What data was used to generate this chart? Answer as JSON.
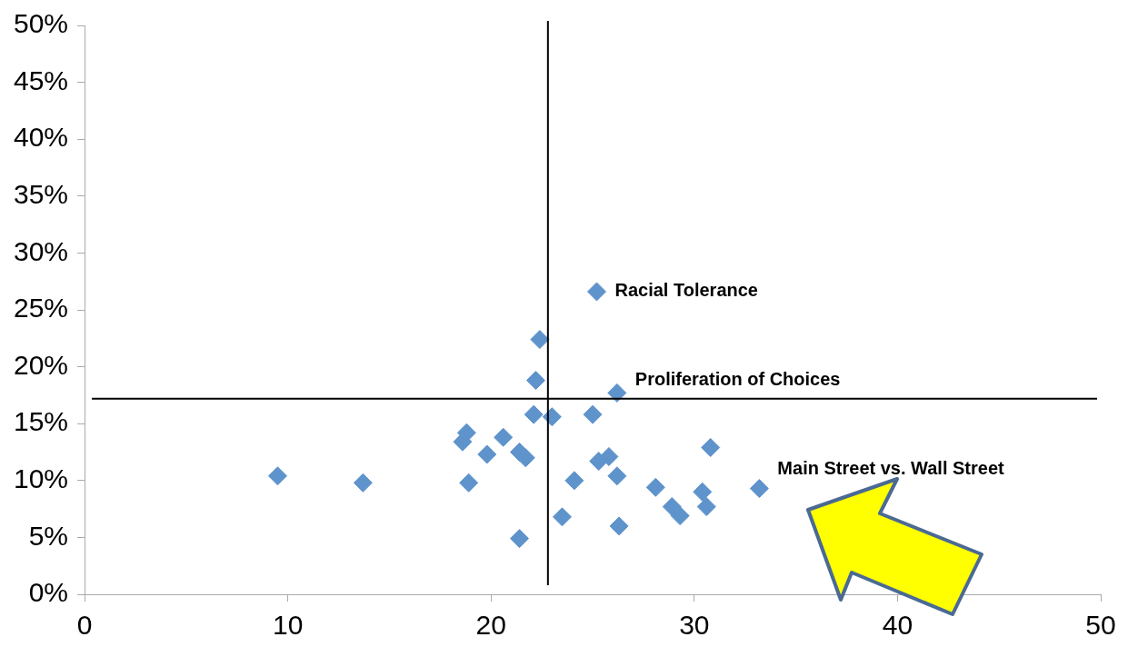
{
  "chart_data": {
    "type": "scatter",
    "marker": "diamond",
    "grid": false,
    "legend": false,
    "xlim": [
      0,
      50
    ],
    "xticks": [
      0,
      10,
      20,
      30,
      40,
      50
    ],
    "ylim": [
      0,
      50
    ],
    "yticks": [
      {
        "value": 0,
        "label": "0%"
      },
      {
        "value": 5,
        "label": "5%"
      },
      {
        "value": 10,
        "label": "10%"
      },
      {
        "value": 15,
        "label": "15%"
      },
      {
        "value": 20,
        "label": "20%"
      },
      {
        "value": 25,
        "label": "25%"
      },
      {
        "value": 30,
        "label": "30%"
      },
      {
        "value": 35,
        "label": "35%"
      },
      {
        "value": 40,
        "label": "40%"
      },
      {
        "value": 45,
        "label": "45%"
      },
      {
        "value": 50,
        "label": "50%"
      }
    ],
    "series": [
      {
        "color": "#5f93cc",
        "x": [
          25.2,
          22.4,
          22.2,
          26.2,
          22.1,
          23.0,
          25.0,
          18.8,
          18.6,
          20.6,
          19.8,
          21.4,
          21.7,
          30.8,
          25.8,
          25.3,
          9.5,
          13.7,
          18.9,
          24.1,
          26.2,
          28.1,
          30.4,
          33.2,
          28.9,
          29.3,
          30.6,
          23.5,
          26.3,
          21.4
        ],
        "values": [
          26.6,
          22.4,
          18.8,
          17.7,
          15.8,
          15.6,
          15.8,
          14.2,
          13.4,
          13.8,
          12.3,
          12.5,
          12.0,
          12.9,
          12.1,
          11.7,
          10.4,
          9.8,
          9.8,
          10.0,
          10.4,
          9.4,
          9.0,
          9.3,
          7.7,
          6.9,
          7.7,
          6.8,
          6.0,
          4.9
        ]
      }
    ],
    "ref_lines": [
      {
        "axis": "x",
        "value": 22.8,
        "color": "#000000"
      },
      {
        "axis": "y",
        "value": 17.2,
        "color": "#000000"
      }
    ],
    "annotations": [
      {
        "text": "Racial Tolerance",
        "x": 25.2,
        "y": 26.6
      },
      {
        "text": "Proliferation of Choices",
        "x": 26.2,
        "y": 17.7
      },
      {
        "text": "Main Street vs. Wall Street",
        "x": 33.2,
        "y": 9.3
      }
    ]
  }
}
